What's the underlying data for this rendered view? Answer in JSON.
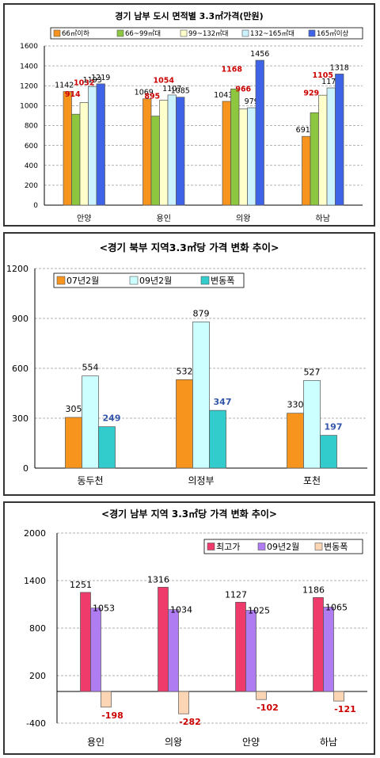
{
  "chart_data": [
    {
      "type": "bar",
      "title": "경기 남부 도시 면적별 3.3㎡가격(만원)",
      "categories": [
        "안양",
        "용인",
        "의왕",
        "하남"
      ],
      "series": [
        {
          "name": "66㎡이하",
          "values": [
            1142,
            1069,
            1043,
            691
          ],
          "color": "#f7941d"
        },
        {
          "name": "66~99㎡대",
          "values": [
            914,
            895,
            1168,
            929
          ],
          "color": "#8dc63f"
        },
        {
          "name": "99~132㎡대",
          "values": [
            1032,
            1054,
            966,
            1105
          ],
          "color": "#ffffcc"
        },
        {
          "name": "132~165㎡대",
          "values": [
            1193,
            1107,
            979,
            1178
          ],
          "color": "#ccf2ff"
        },
        {
          "name": "165㎡이상",
          "values": [
            1219,
            1085,
            1456,
            1318
          ],
          "color": "#3f63e6"
        }
      ],
      "label_colors": [
        "#000000",
        "#cc0000",
        "#cc0000",
        "#000000",
        "#000000"
      ],
      "yticks": [
        0,
        200,
        400,
        600,
        800,
        1000,
        1200,
        1400,
        1600
      ],
      "ylim": [
        0,
        1600
      ],
      "grid": true,
      "legend_position": "top"
    },
    {
      "type": "bar",
      "title": "<경기 북부 지역3.3㎡당 가격 변화 추이>",
      "categories": [
        "동두천",
        "의정부",
        "포천"
      ],
      "series": [
        {
          "name": "07년2월",
          "values": [
            305,
            532,
            330
          ],
          "color": "#f7941d"
        },
        {
          "name": "09년2월",
          "values": [
            554,
            879,
            527
          ],
          "color": "#ccffff"
        },
        {
          "name": "변동폭",
          "values": [
            249,
            347,
            197
          ],
          "color": "#33cccc"
        }
      ],
      "label_colors": [
        "#000000",
        "#000000",
        "#3355aa"
      ],
      "yticks": [
        0,
        300,
        600,
        900,
        1200
      ],
      "ylim": [
        0,
        1200
      ],
      "grid": true,
      "legend_position": "top-left"
    },
    {
      "type": "bar",
      "title": "<경기 남부 지역 3.3㎡당 가격 변화 추이>",
      "categories": [
        "용인",
        "의왕",
        "안양",
        "하남"
      ],
      "series": [
        {
          "name": "최고가",
          "values": [
            1251,
            1316,
            1127,
            1186
          ],
          "color": "#ee3b6b"
        },
        {
          "name": "09년2월",
          "values": [
            1053,
            1034,
            1025,
            1065
          ],
          "color": "#b07cf2"
        },
        {
          "name": "변동폭",
          "values": [
            -198,
            -282,
            -102,
            -121
          ],
          "color": "#fcd5b4"
        }
      ],
      "label_colors": [
        "#000000",
        "#000000",
        "#cc0000"
      ],
      "yticks": [
        -400,
        200,
        800,
        1400,
        2000
      ],
      "ylim": [
        -400,
        2000
      ],
      "grid": true,
      "legend_position": "top-right"
    }
  ]
}
